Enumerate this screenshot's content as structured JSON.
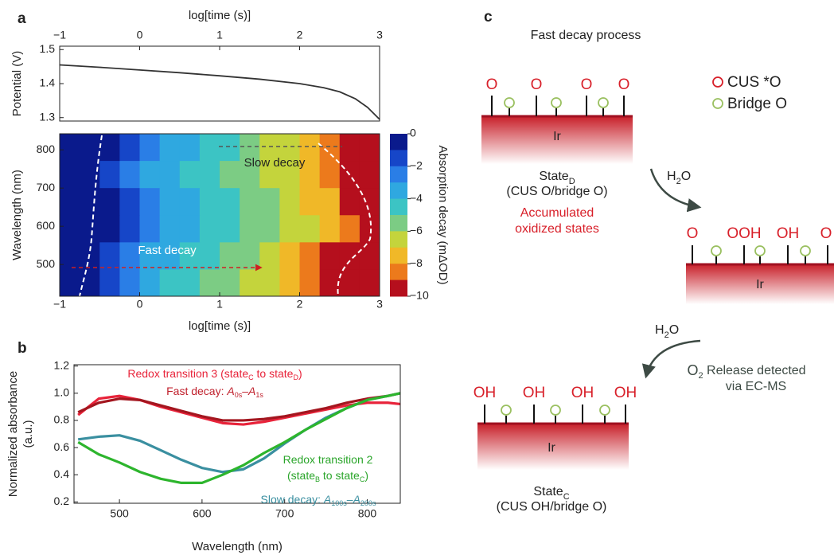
{
  "chart_data": [
    {
      "type": "line",
      "panel": "a",
      "x_label": "log[time (s)]",
      "y_label": "Potential (V)",
      "x": [
        -1,
        -0.5,
        0,
        0.5,
        1,
        1.5,
        2,
        2.3,
        2.5,
        2.7,
        2.85,
        3
      ],
      "series": [
        {
          "color": "#333333",
          "values": [
            1.455,
            1.448,
            1.44,
            1.432,
            1.423,
            1.413,
            1.4,
            1.388,
            1.376,
            1.355,
            1.33,
            1.295
          ]
        }
      ],
      "xlim": [
        -1,
        3
      ],
      "xticks": [
        {
          "value": -1,
          "label": "−1"
        },
        0,
        1,
        2,
        3
      ],
      "ylim": [
        1.29,
        1.51
      ],
      "yticks": [
        1.3,
        1.4,
        1.5
      ]
    },
    {
      "type": "heatmap",
      "x_label": "log[time (s)]",
      "y_label": "Wavelength (nm)",
      "x_bins": [
        -1,
        -0.75,
        -0.5,
        -0.25,
        0,
        0.25,
        0.5,
        0.75,
        1,
        1.25,
        1.5,
        1.75,
        2,
        2.25,
        2.5,
        2.75,
        3
      ],
      "y_bins": [
        417,
        488,
        559,
        630,
        701,
        772,
        842
      ],
      "values": [
        [
          0,
          -0.5,
          -1.5,
          -2.5,
          -3.5,
          -4,
          -4.5,
          -5,
          -5.5,
          -6,
          -6.5,
          -7.5,
          -8.5,
          -9.5,
          -10,
          -10
        ],
        [
          0,
          -0.5,
          -1,
          -2,
          -3,
          -3.5,
          -4,
          -4.5,
          -5,
          -5.5,
          -6,
          -7,
          -8,
          -9,
          -10,
          -10
        ],
        [
          0,
          0,
          -0.5,
          -1.5,
          -2.5,
          -3,
          -3.5,
          -4,
          -4.5,
          -5,
          -5.5,
          -6,
          -6.5,
          -7,
          -8.5,
          -10
        ],
        [
          0,
          0,
          -0.5,
          -1.5,
          -2.5,
          -3,
          -3.5,
          -4,
          -4.5,
          -5,
          -5.5,
          -6,
          -7,
          -7.5,
          -9,
          -10
        ],
        [
          0,
          0,
          -1,
          -2,
          -3,
          -3.5,
          -4,
          -4.5,
          -5,
          -5.5,
          -6,
          -6.5,
          -7.5,
          -8.5,
          -9.5,
          -10
        ],
        [
          0,
          0,
          -0.5,
          -1.5,
          -2.5,
          -3,
          -3.5,
          -4,
          -4.5,
          -5,
          -6,
          -6.5,
          -7.5,
          -8.5,
          -9.5,
          -10
        ]
      ],
      "xlim": [
        -1,
        3
      ],
      "xticks": [
        {
          "value": -1,
          "label": "−1"
        },
        0,
        1,
        2,
        3
      ],
      "ylim": [
        417,
        842
      ],
      "yticks": [
        500,
        600,
        700,
        800
      ],
      "annotations": [
        "Slow decay",
        "Fast decay"
      ],
      "colorbar": {
        "label": "Absorption decay (mΔOD)",
        "lim": [
          -10,
          0
        ],
        "ticks": [
          0,
          {
            "value": -2,
            "label": "−2"
          },
          {
            "value": -4,
            "label": "−4"
          },
          {
            "value": -6,
            "label": "−6"
          },
          {
            "value": -8,
            "label": "−8"
          },
          {
            "value": -10,
            "label": "−10"
          }
        ],
        "colors": [
          "#0a1a8c",
          "#1646c8",
          "#2a7ee6",
          "#2fa8e0",
          "#3cc4c4",
          "#7ccc84",
          "#c4d43c",
          "#f0b828",
          "#ec7a1c",
          "#b50f1d"
        ]
      }
    },
    {
      "type": "line",
      "panel": "b",
      "x_label": "Wavelength (nm)",
      "y_label": [
        "Normalized absorbance",
        "(a.u.)"
      ],
      "x": [
        450,
        475,
        500,
        525,
        550,
        575,
        600,
        625,
        650,
        675,
        700,
        725,
        750,
        775,
        800,
        825,
        840
      ],
      "series": [
        {
          "color": "#e8233a",
          "values": [
            0.84,
            0.96,
            0.98,
            0.95,
            0.9,
            0.86,
            0.82,
            0.78,
            0.77,
            0.79,
            0.82,
            0.85,
            0.88,
            0.91,
            0.93,
            0.93,
            0.92
          ]
        },
        {
          "color": "#a3161f",
          "values": [
            0.86,
            0.93,
            0.96,
            0.95,
            0.91,
            0.87,
            0.83,
            0.8,
            0.8,
            0.81,
            0.83,
            0.86,
            0.89,
            0.93,
            0.96,
            0.98,
            1.0
          ]
        },
        {
          "color": "#3a8fa0",
          "values": [
            0.66,
            0.68,
            0.69,
            0.65,
            0.58,
            0.51,
            0.45,
            0.42,
            0.44,
            0.52,
            0.63,
            0.73,
            0.82,
            0.89,
            0.95,
            0.98,
            1.0
          ]
        },
        {
          "color": "#2db52d",
          "values": [
            0.64,
            0.55,
            0.49,
            0.42,
            0.37,
            0.34,
            0.34,
            0.4,
            0.47,
            0.56,
            0.64,
            0.73,
            0.81,
            0.89,
            0.95,
            0.98,
            1.0
          ]
        }
      ],
      "xlim": [
        445,
        840
      ],
      "xticks": [
        500,
        600,
        700,
        800
      ],
      "ylim": [
        0.19,
        1.21
      ],
      "yticks": [
        0.2,
        0.4,
        0.6,
        0.8,
        {
          "value": 1,
          "label": "1.0"
        },
        1.2
      ],
      "annotations": [
        {
          "color": "#e8233a",
          "lines": [
            [
              {
                "text": "Redox transition 3 (state"
              },
              {
                "text": "C",
                "style": "sub"
              },
              {
                "text": " to state"
              },
              {
                "text": "D",
                "style": "sub"
              },
              {
                "text": ")"
              }
            ]
          ]
        },
        {
          "color": "#c0202c",
          "lines": [
            [
              {
                "text": "Fast decay: "
              },
              {
                "text": "A",
                "style": "i"
              },
              {
                "text": "0s",
                "style": "sub"
              },
              {
                "text": "–"
              },
              {
                "text": "A",
                "style": "i"
              },
              {
                "text": "1s",
                "style": "sub"
              }
            ]
          ]
        },
        {
          "color": "#2aa52a",
          "lines": [
            [
              {
                "text": "Redox transition 2"
              }
            ],
            [
              {
                "text": "(state"
              },
              {
                "text": "B",
                "style": "sub"
              },
              {
                "text": " to state"
              },
              {
                "text": "C",
                "style": "sub"
              },
              {
                "text": ")"
              }
            ]
          ]
        },
        {
          "color": "#3a8fa0",
          "lines": [
            [
              {
                "text": "Slow decay: "
              },
              {
                "text": "A",
                "style": "i"
              },
              {
                "text": "100s",
                "style": "sub"
              },
              {
                "text": "–"
              },
              {
                "text": "A",
                "style": "i"
              },
              {
                "text": "200s",
                "style": "sub"
              }
            ]
          ]
        }
      ]
    }
  ],
  "diagram": {
    "panel": "c",
    "title": "Fast decay process",
    "legend": [
      "CUS *O",
      "Bridge O"
    ],
    "slabs": [
      {
        "top": [
          "O",
          "O",
          "O",
          "O"
        ],
        "label": "Ir",
        "state": [
          "State",
          "D"
        ],
        "desc": "(CUS O/bridge O)",
        "note": [
          "Accumulated",
          "oxidized states"
        ]
      },
      {
        "top": [
          "O",
          "OOH",
          "OH",
          "O"
        ],
        "label": "Ir"
      },
      {
        "top": [
          "OH",
          "OH",
          "OH",
          "OH"
        ],
        "label": "Ir",
        "state": [
          "State",
          "C"
        ],
        "desc": "(CUS OH/bridge O)"
      }
    ],
    "steps": [
      {
        "reagent": [
          "H",
          "2",
          "O"
        ]
      },
      {
        "reagent": [
          "H",
          "2",
          "O"
        ],
        "product": [
          "O",
          "2",
          " Release detected"
        ],
        "product2": "via EC-MS"
      }
    ]
  }
}
